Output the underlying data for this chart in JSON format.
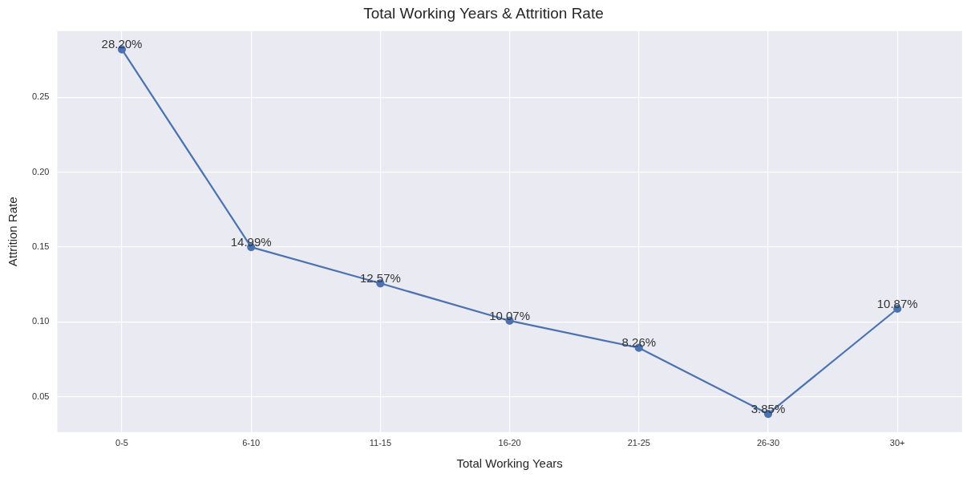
{
  "chart_data": {
    "type": "line",
    "title": "Total Working Years & Attrition Rate",
    "xlabel": "Total Working Years",
    "ylabel": "Attrition Rate",
    "categories": [
      "0-5",
      "6-10",
      "11-15",
      "16-20",
      "21-25",
      "26-30",
      "30+"
    ],
    "series": [
      {
        "color": "#4c72b0",
        "values": [
          0.282,
          0.1499,
          0.1257,
          0.1007,
          0.0826,
          0.0385,
          0.1087
        ],
        "value_labels": [
          "28.20%",
          "14.99%",
          "12.57%",
          "10.07%",
          "8.26%",
          "3.85%",
          "10.87%"
        ]
      }
    ],
    "ylim": [
      0.0263,
      0.2942
    ],
    "yticks": [
      {
        "value": 0.05,
        "label": "0.05"
      },
      {
        "value": 0.1,
        "label": "0.10"
      },
      {
        "value": 0.15,
        "label": "0.15"
      },
      {
        "value": 0.2,
        "label": "0.20"
      },
      {
        "value": 0.25,
        "label": "0.25"
      }
    ],
    "grid": true,
    "marker": "circle",
    "line_style": "solid"
  }
}
